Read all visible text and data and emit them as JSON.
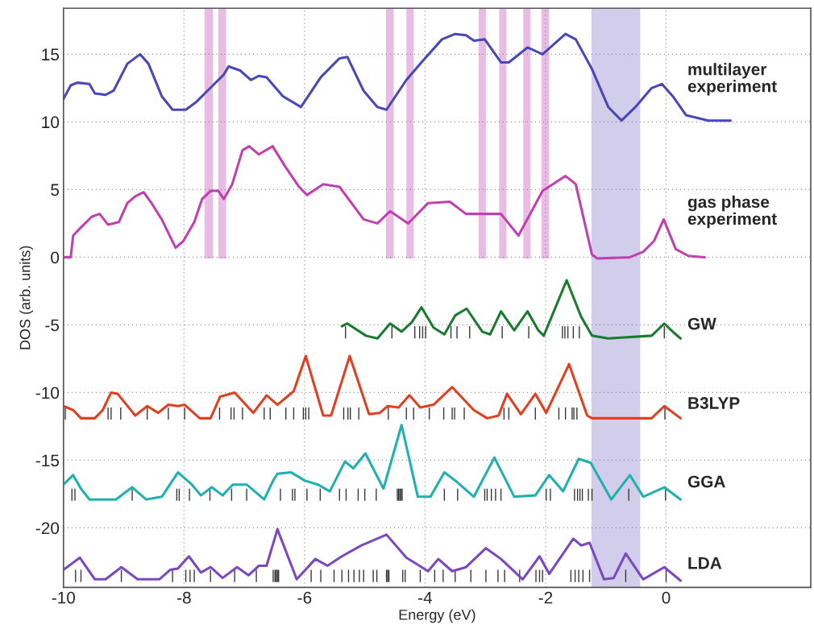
{
  "chart_data": {
    "type": "line",
    "xlabel": "Energy (eV)",
    "ylabel": "DOS (arb. units)",
    "xlim": [
      -10,
      2.4
    ],
    "ylim": [
      -24.4,
      18.4
    ],
    "xticks": [
      -10,
      -8,
      -6,
      -4,
      -2,
      0
    ],
    "yticks": [
      -20,
      -15,
      -10,
      -5,
      0,
      5,
      10,
      15
    ],
    "grid": true,
    "legend": false,
    "bands": [
      {
        "axis": "x",
        "from": -7.66,
        "to": -7.52,
        "color": "#c040b0"
      },
      {
        "axis": "x",
        "from": -7.43,
        "to": -7.3,
        "color": "#c040b0"
      },
      {
        "axis": "x",
        "from": -4.65,
        "to": -4.52,
        "color": "#c040b0"
      },
      {
        "axis": "x",
        "from": -4.31,
        "to": -4.19,
        "color": "#c040b0"
      },
      {
        "axis": "x",
        "from": -3.11,
        "to": -2.99,
        "color": "#c040b0"
      },
      {
        "axis": "x",
        "from": -2.77,
        "to": -2.65,
        "color": "#c040b0"
      },
      {
        "axis": "x",
        "from": -2.37,
        "to": -2.25,
        "color": "#c040b0"
      },
      {
        "axis": "x",
        "from": -2.07,
        "to": -1.94,
        "color": "#c040b0"
      },
      {
        "axis": "x",
        "from": -1.24,
        "to": -0.43,
        "color": "#8070c8"
      }
    ],
    "series": [
      {
        "name": "multilayer\nexperiment",
        "color": "#4848b8",
        "x": [
          -10,
          -9.88,
          -9.77,
          -9.57,
          -9.48,
          -9.3,
          -9.17,
          -8.94,
          -8.73,
          -8.59,
          -8.37,
          -8.19,
          -7.97,
          -7.79,
          -7.52,
          -7.34,
          -7.26,
          -7.07,
          -6.89,
          -6.76,
          -6.63,
          -6.36,
          -6.06,
          -5.73,
          -5.42,
          -5.29,
          -5.02,
          -4.79,
          -4.64,
          -4.31,
          -4.04,
          -3.72,
          -3.5,
          -3.32,
          -3.19,
          -3.01,
          -2.74,
          -2.61,
          -2.3,
          -2.05,
          -1.67,
          -1.5,
          -1.23,
          -0.96,
          -0.74,
          -0.51,
          -0.24,
          -0.07,
          0.11,
          0.33,
          0.7,
          1.07
        ],
        "values": [
          11.7,
          12.7,
          12.9,
          12.8,
          12.1,
          12.0,
          12.3,
          14.3,
          15.0,
          14.3,
          11.9,
          10.9,
          10.9,
          11.5,
          12.7,
          13.5,
          14.1,
          13.8,
          13.1,
          13.4,
          13.3,
          11.9,
          11.1,
          13.3,
          14.7,
          14.8,
          12.3,
          11.1,
          10.9,
          13.1,
          14.5,
          16.1,
          16.5,
          16.4,
          16.0,
          16.1,
          14.4,
          14.4,
          15.5,
          15.0,
          16.5,
          16.1,
          13.9,
          11.1,
          10.1,
          11.1,
          12.5,
          12.8,
          11.9,
          10.5,
          10.1,
          10.1
        ]
      },
      {
        "name": "gas phase\nexperiment",
        "color": "#c040b0",
        "x": [
          -10,
          -9.88,
          -9.84,
          -9.71,
          -9.53,
          -9.4,
          -9.26,
          -9.08,
          -8.94,
          -8.81,
          -8.67,
          -8.54,
          -8.37,
          -8.14,
          -8.01,
          -7.83,
          -7.7,
          -7.56,
          -7.43,
          -7.34,
          -7.2,
          -7.03,
          -6.92,
          -6.76,
          -6.53,
          -6.32,
          -6.09,
          -5.96,
          -5.69,
          -5.42,
          -5.02,
          -4.79,
          -4.58,
          -4.28,
          -3.95,
          -3.59,
          -3.32,
          -2.74,
          -2.45,
          -2.05,
          -1.67,
          -1.5,
          -1.23,
          -1.14,
          -0.6,
          -0.38,
          -0.2,
          -0.04,
          0.16,
          0.37,
          0.64
        ],
        "values": [
          0,
          0,
          1.6,
          2.2,
          3.0,
          3.2,
          2.4,
          2.6,
          4.0,
          4.5,
          4.8,
          4.0,
          2.8,
          0.7,
          1.2,
          2.6,
          4.3,
          4.9,
          4.9,
          4.3,
          5.4,
          7.9,
          8.2,
          7.6,
          8.2,
          6.7,
          5.2,
          4.6,
          5.4,
          5.2,
          2.8,
          2.5,
          3.4,
          2.5,
          4.0,
          4.1,
          3.2,
          3.2,
          1.6,
          4.9,
          6.0,
          5.4,
          0.2,
          -0.1,
          0,
          0.4,
          1.2,
          2.8,
          0.6,
          0.1,
          0
        ]
      },
      {
        "name": "GW",
        "color": "#1a7a30",
        "x": [
          -5.38,
          -5.29,
          -4.98,
          -4.79,
          -4.58,
          -4.39,
          -4.22,
          -4.06,
          -3.86,
          -3.68,
          -3.5,
          -3.31,
          -3.05,
          -2.92,
          -2.74,
          -2.52,
          -2.3,
          -2.12,
          -2.03,
          -1.65,
          -1.41,
          -1.23,
          -0.96,
          -0.24,
          -0.03,
          0.11,
          0.24
        ],
        "values": [
          -5.1,
          -4.9,
          -5.8,
          -6.0,
          -4.9,
          -5.5,
          -4.8,
          -3.7,
          -5.2,
          -5.7,
          -4.3,
          -3.8,
          -5.5,
          -5.7,
          -4.0,
          -5.4,
          -4.0,
          -5.4,
          -5.8,
          -1.7,
          -4.4,
          -5.8,
          -6.0,
          -5.8,
          -4.9,
          -5.5,
          -6.0
        ]
      },
      {
        "name": "B3LYP",
        "color": "#e04020",
        "x": [
          -10,
          -9.84,
          -9.71,
          -9.48,
          -9.35,
          -9.21,
          -9.1,
          -8.81,
          -8.61,
          -8.43,
          -8.26,
          -8.1,
          -7.99,
          -7.74,
          -7.56,
          -7.4,
          -7.16,
          -6.85,
          -6.63,
          -6.45,
          -6.18,
          -5.98,
          -5.69,
          -5.56,
          -5.25,
          -4.93,
          -4.75,
          -4.62,
          -4.44,
          -4.26,
          -4.08,
          -3.86,
          -3.55,
          -3.19,
          -2.97,
          -2.78,
          -2.64,
          -2.41,
          -2.17,
          -1.99,
          -1.61,
          -1.31,
          -1.23,
          -0.24,
          -0.03,
          0.24
        ],
        "values": [
          -11.0,
          -11.3,
          -11.9,
          -11.9,
          -11.3,
          -10.0,
          -10.1,
          -11.7,
          -11.0,
          -11.5,
          -10.9,
          -11.0,
          -10.9,
          -11.9,
          -11.9,
          -10.3,
          -10.0,
          -11.5,
          -10.2,
          -10.9,
          -9.9,
          -7.3,
          -11.7,
          -11.7,
          -7.3,
          -11.6,
          -11.5,
          -11.0,
          -11.1,
          -10.2,
          -11.1,
          -10.9,
          -9.6,
          -11.3,
          -11.9,
          -11.7,
          -10.1,
          -11.6,
          -10.1,
          -11.5,
          -7.9,
          -11.7,
          -11.9,
          -11.9,
          -11.0,
          -11.9
        ]
      },
      {
        "name": "GGA",
        "color": "#20b0b0",
        "x": [
          -10,
          -9.84,
          -9.71,
          -9.57,
          -9.13,
          -8.86,
          -8.63,
          -8.37,
          -8.1,
          -7.87,
          -7.72,
          -7.54,
          -7.36,
          -7.19,
          -6.96,
          -6.67,
          -6.52,
          -6.45,
          -6.22,
          -6.0,
          -5.78,
          -5.58,
          -5.33,
          -5.19,
          -4.99,
          -4.69,
          -4.39,
          -4.12,
          -3.91,
          -3.68,
          -3.5,
          -3.19,
          -2.85,
          -2.52,
          -2.17,
          -1.94,
          -1.71,
          -1.45,
          -1.25,
          -0.91,
          -0.6,
          -0.38,
          -0.03,
          0.24
        ],
        "values": [
          -16.8,
          -16.1,
          -17.1,
          -17.9,
          -17.9,
          -17.0,
          -17.9,
          -17.7,
          -15.9,
          -16.8,
          -17.6,
          -17.0,
          -17.6,
          -16.8,
          -16.8,
          -17.9,
          -16.5,
          -16.0,
          -15.9,
          -16.5,
          -16.8,
          -17.3,
          -15.1,
          -15.6,
          -14.5,
          -17.1,
          -12.4,
          -17.7,
          -17.7,
          -15.9,
          -16.5,
          -17.7,
          -14.8,
          -17.7,
          -17.6,
          -16.1,
          -17.3,
          -14.9,
          -15.2,
          -17.9,
          -16.1,
          -17.7,
          -17.0,
          -17.9
        ]
      },
      {
        "name": "LDA",
        "color": "#7a48c0",
        "x": [
          -10,
          -9.73,
          -9.48,
          -9.3,
          -9.04,
          -8.77,
          -8.41,
          -8.23,
          -8.1,
          -7.92,
          -7.72,
          -7.56,
          -7.36,
          -7.12,
          -6.93,
          -6.76,
          -6.63,
          -6.45,
          -6.13,
          -5.82,
          -5.62,
          -5.38,
          -5.06,
          -4.64,
          -4.31,
          -3.95,
          -3.78,
          -3.55,
          -3.32,
          -2.99,
          -2.74,
          -2.38,
          -2.1,
          -1.94,
          -1.54,
          -1.41,
          -1.27,
          -1.03,
          -0.87,
          -0.67,
          -0.38,
          -0.03,
          0.24
        ],
        "values": [
          -23.1,
          -22.2,
          -23.8,
          -23.8,
          -22.9,
          -23.8,
          -23.8,
          -23.1,
          -23.0,
          -22.1,
          -23.3,
          -22.9,
          -23.7,
          -22.9,
          -23.5,
          -22.8,
          -22.8,
          -20.1,
          -23.8,
          -22.3,
          -22.8,
          -22.1,
          -21.3,
          -20.5,
          -22.2,
          -23.2,
          -22.3,
          -23.2,
          -22.9,
          -21.5,
          -22.3,
          -23.8,
          -22.1,
          -23.4,
          -20.8,
          -21.3,
          -21.1,
          -23.8,
          -23.7,
          -21.9,
          -23.8,
          -22.9,
          -23.9
        ]
      },
      {
        "type": "bar",
        "color": "#333333",
        "x": [
          -9.97,
          -9.86,
          -9.81,
          -9.8,
          -9.71,
          -9.26,
          -9.21,
          -9.05,
          -9.04,
          -8.86,
          -8.61,
          -8.26,
          -8.19,
          -8.12,
          -8.08,
          -7.99,
          -7.97,
          -7.91,
          -7.9,
          -7.83,
          -7.57,
          -7.56,
          -7.41,
          -7.22,
          -7.21,
          -7.17,
          -7.16,
          -7.03,
          -6.96,
          -6.8,
          -6.67,
          -6.57,
          -6.52,
          -6.49,
          -6.47,
          -6.45,
          -6.43,
          -6.4,
          -6.31,
          -6.2,
          -6.18,
          -6.16,
          -6.02,
          -5.98,
          -5.96,
          -5.93,
          -5.89,
          -5.74,
          -5.73,
          -5.51,
          -5.42,
          -5.38,
          -5.35,
          -5.32,
          -5.31,
          -5.28,
          -5.27,
          -5.24,
          -5.18,
          -5.11,
          -5.1,
          -5.09,
          -5.02,
          -5.0,
          -4.86,
          -4.81,
          -4.8,
          -4.64,
          -4.62,
          -4.61,
          -4.6,
          -4.55,
          -4.46,
          -4.44,
          -4.42,
          -4.4,
          -4.38,
          -4.37,
          -4.33,
          -4.31,
          -4.19,
          -4.17,
          -4.09,
          -4.08,
          -4.04,
          -3.99,
          -3.93,
          -3.84,
          -3.7,
          -3.69,
          -3.68,
          -3.57,
          -3.55,
          -3.51,
          -3.5,
          -3.47,
          -3.46,
          -3.35,
          -3.26,
          -3.24,
          -3.01,
          -2.99,
          -2.97,
          -2.9,
          -2.83,
          -2.79,
          -2.74,
          -2.72,
          -2.69,
          -2.68,
          -2.61,
          -2.43,
          -2.28,
          -2.17,
          -2.16,
          -2.1,
          -2.05,
          -1.99,
          -1.92,
          -1.78,
          -1.72,
          -1.68,
          -1.67,
          -1.63,
          -1.58,
          -1.56,
          -1.54,
          -1.53,
          -1.52,
          -1.51,
          -1.48,
          -1.47,
          -1.45,
          -1.44,
          -1.43,
          -1.39,
          -1.38,
          -1.29,
          -1.27,
          -1.23,
          -0.67,
          -0.62,
          -0.03,
          -0.02,
          -0.01,
          0
        ],
        "base": [
          -12,
          -18,
          -18,
          -24,
          -24,
          -12,
          -12,
          -12,
          -24,
          -18,
          -12,
          -12,
          -24,
          -18,
          -18,
          -12,
          -24,
          -18,
          -24,
          -24,
          -18,
          -24,
          -12,
          -12,
          -18,
          -12,
          -24,
          -12,
          -18,
          -24,
          -12,
          -12,
          -24,
          -24,
          -24,
          -24,
          -24,
          -18,
          -12,
          -18,
          -12,
          -18,
          -12,
          -12,
          -18,
          -12,
          -24,
          -18,
          -24,
          -24,
          -18,
          -24,
          -12,
          -6,
          -18,
          -12,
          -24,
          -12,
          -24,
          -18,
          -12,
          -24,
          -24,
          -18,
          -24,
          -18,
          -24,
          -24,
          -24,
          -12,
          -24,
          -6,
          -18,
          -18,
          -18,
          -18,
          -18,
          -24,
          -24,
          -12,
          -12,
          -6,
          -6,
          -24,
          -6,
          -6,
          -12,
          -24,
          -24,
          -12,
          -18,
          -6,
          -12,
          -12,
          -24,
          -6,
          -18,
          -12,
          -6,
          -24,
          -18,
          -24,
          -18,
          -18,
          -18,
          -24,
          -18,
          -6,
          -12,
          -24,
          -12,
          -24,
          -6,
          -12,
          -24,
          -24,
          -24,
          -18,
          -18,
          -12,
          -6,
          -6,
          -12,
          -6,
          -24,
          -12,
          -6,
          -12,
          -18,
          -24,
          -12,
          -18,
          -24,
          -6,
          -18,
          -18,
          -24,
          -18,
          -24,
          -18,
          -24,
          -18,
          -6,
          -12,
          -18,
          -24
        ],
        "values": [
          0.9,
          0.9,
          0.9,
          0.9,
          0.9,
          0.9,
          0.9,
          0.9,
          0.9,
          0.9,
          0.9,
          0.9,
          0.9,
          0.9,
          0.9,
          0.9,
          0.9,
          0.9,
          0.9,
          0.9,
          0.9,
          0.9,
          0.9,
          0.9,
          0.9,
          0.9,
          0.9,
          0.9,
          0.9,
          0.9,
          0.9,
          0.9,
          0.9,
          0.9,
          0.9,
          0.9,
          0.9,
          0.9,
          0.9,
          0.9,
          0.9,
          0.9,
          0.9,
          0.9,
          0.9,
          0.9,
          0.9,
          0.9,
          0.9,
          0.9,
          0.9,
          0.9,
          0.9,
          0.9,
          0.9,
          0.9,
          0.9,
          0.9,
          0.9,
          0.9,
          0.9,
          0.9,
          0.9,
          0.9,
          0.9,
          0.9,
          0.9,
          0.9,
          0.9,
          0.9,
          0.9,
          0.9,
          0.9,
          0.9,
          0.9,
          0.9,
          0.9,
          0.9,
          0.9,
          0.9,
          0.9,
          0.9,
          0.9,
          0.9,
          0.9,
          0.9,
          0.9,
          0.9,
          0.9,
          0.9,
          0.9,
          0.9,
          0.9,
          0.9,
          0.9,
          0.9,
          0.9,
          0.9,
          0.9,
          0.9,
          0.9,
          0.9,
          0.9,
          0.9,
          0.9,
          0.9,
          0.9,
          0.9,
          0.9,
          0.9,
          0.9,
          0.9,
          0.9,
          0.9,
          0.9,
          0.9,
          0.9,
          0.9,
          0.9,
          0.9,
          0.9,
          0.9,
          0.9,
          0.9,
          0.9,
          0.9,
          0.9,
          0.9,
          0.9,
          0.9,
          0.9,
          0.9,
          0.9,
          0.9,
          0.9,
          0.9,
          0.9,
          0.9,
          0.9,
          0.9,
          0.9,
          0.9,
          0.9,
          0.9,
          0.9,
          0.9
        ]
      }
    ]
  }
}
